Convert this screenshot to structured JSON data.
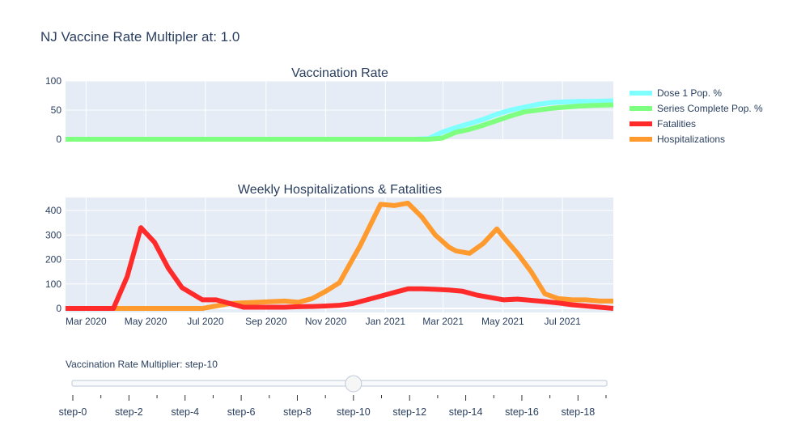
{
  "title": "NJ Vaccine Rate Multipler at: 1.0",
  "chart_data": [
    {
      "type": "line",
      "title": "Vaccination Rate",
      "ylim": [
        0,
        100
      ],
      "yticks": [
        0,
        50,
        100
      ],
      "grid": true,
      "series": [
        {
          "name": "Dose 1 Pop. %",
          "color": "#7fffff",
          "x": [
            "2020-02-09",
            "2020-12-13",
            "2020-12-27",
            "2021-01-03",
            "2021-01-17",
            "2021-01-31",
            "2021-02-14",
            "2021-02-28",
            "2021-03-14",
            "2021-03-28",
            "2021-04-11",
            "2021-04-25",
            "2021-05-09",
            "2021-05-23",
            "2021-06-06",
            "2021-06-20",
            "2021-07-04",
            "2021-07-18",
            "2021-08-01",
            "2021-08-22"
          ],
          "y": [
            0,
            0,
            0,
            0,
            0,
            0,
            1,
            12,
            20,
            27,
            34,
            43,
            50,
            55,
            60,
            63,
            64,
            65,
            65,
            66
          ]
        },
        {
          "name": "Series Complete Pop. %",
          "color": "#7fff7f",
          "x": [
            "2020-02-09",
            "2021-01-17",
            "2021-01-31",
            "2021-02-14",
            "2021-02-28",
            "2021-03-14",
            "2021-03-28",
            "2021-04-11",
            "2021-04-25",
            "2021-05-09",
            "2021-05-23",
            "2021-06-06",
            "2021-06-20",
            "2021-07-04",
            "2021-07-18",
            "2021-08-01",
            "2021-08-22"
          ],
          "y": [
            0,
            0,
            0,
            0,
            2,
            12,
            17,
            24,
            32,
            40,
            47,
            50,
            53,
            55,
            57,
            58,
            59
          ]
        }
      ]
    },
    {
      "type": "line",
      "title": "Weekly Hospitalizations & Fatalities",
      "ylim": [
        -15,
        450
      ],
      "yticks": [
        0,
        100,
        200,
        300,
        400
      ],
      "xlim": [
        "2020-02-09",
        "2021-08-22"
      ],
      "xticks": [
        {
          "date": "2020-03-01",
          "label": "Mar 2020"
        },
        {
          "date": "2020-05-01",
          "label": "May 2020"
        },
        {
          "date": "2020-07-01",
          "label": "Jul 2020"
        },
        {
          "date": "2020-09-01",
          "label": "Sep 2020"
        },
        {
          "date": "2020-11-01",
          "label": "Nov 2020"
        },
        {
          "date": "2021-01-01",
          "label": "Jan 2021"
        },
        {
          "date": "2021-03-01",
          "label": "Mar 2021"
        },
        {
          "date": "2021-05-01",
          "label": "May 2021"
        },
        {
          "date": "2021-07-01",
          "label": "Jul 2021"
        }
      ],
      "grid": true,
      "series": [
        {
          "name": "Fatalities",
          "color": "#ff2a2a",
          "x": [
            "2020-02-09",
            "2020-03-29",
            "2020-04-12",
            "2020-04-26",
            "2020-05-10",
            "2020-05-24",
            "2020-06-07",
            "2020-06-28",
            "2020-07-12",
            "2020-07-26",
            "2020-08-09",
            "2020-08-23",
            "2020-09-06",
            "2020-09-20",
            "2020-10-04",
            "2020-10-18",
            "2020-11-01",
            "2020-11-15",
            "2020-11-29",
            "2020-12-13",
            "2020-12-27",
            "2021-01-10",
            "2021-01-24",
            "2021-02-07",
            "2021-02-21",
            "2021-03-07",
            "2021-03-21",
            "2021-04-04",
            "2021-04-18",
            "2021-05-02",
            "2021-05-16",
            "2021-05-30",
            "2021-06-13",
            "2021-06-27",
            "2021-07-11",
            "2021-07-25",
            "2021-08-08",
            "2021-08-22"
          ],
          "y": [
            0,
            0,
            130,
            330,
            270,
            165,
            85,
            35,
            35,
            20,
            5,
            5,
            5,
            5,
            7,
            8,
            10,
            13,
            20,
            35,
            50,
            65,
            80,
            80,
            78,
            75,
            70,
            55,
            45,
            35,
            38,
            33,
            28,
            22,
            15,
            10,
            5,
            0
          ]
        },
        {
          "name": "Hospitalizations",
          "color": "#ff9a2e",
          "x": [
            "2020-02-09",
            "2020-06-28",
            "2020-07-26",
            "2020-08-23",
            "2020-09-20",
            "2020-10-04",
            "2020-10-18",
            "2020-11-01",
            "2020-11-15",
            "2020-12-06",
            "2020-12-27",
            "2021-01-10",
            "2021-01-24",
            "2021-02-07",
            "2021-02-21",
            "2021-03-07",
            "2021-03-14",
            "2021-03-28",
            "2021-04-11",
            "2021-04-25",
            "2021-05-02",
            "2021-05-16",
            "2021-05-30",
            "2021-06-13",
            "2021-06-27",
            "2021-07-11",
            "2021-07-25",
            "2021-08-08",
            "2021-08-22"
          ],
          "y": [
            0,
            0,
            20,
            25,
            30,
            25,
            40,
            70,
            105,
            255,
            425,
            420,
            430,
            375,
            300,
            250,
            235,
            225,
            265,
            325,
            290,
            225,
            150,
            60,
            40,
            35,
            35,
            30,
            30
          ]
        }
      ]
    }
  ],
  "legend": {
    "placement": "top-right",
    "items": [
      {
        "label": "Dose 1 Pop. %",
        "color": "#7fffff"
      },
      {
        "label": "Series Complete Pop. %",
        "color": "#7fff7f"
      },
      {
        "label": "Fatalities",
        "color": "#ff2a2a"
      },
      {
        "label": "Hospitalizations",
        "color": "#ff9a2e"
      }
    ]
  },
  "slider": {
    "label": "Vaccination Rate Multiplier: step-10",
    "current_index": 10,
    "step_count": 20,
    "labels": [
      "step-0",
      "step-2",
      "step-4",
      "step-6",
      "step-8",
      "step-10",
      "step-12",
      "step-14",
      "step-16",
      "step-18"
    ]
  }
}
